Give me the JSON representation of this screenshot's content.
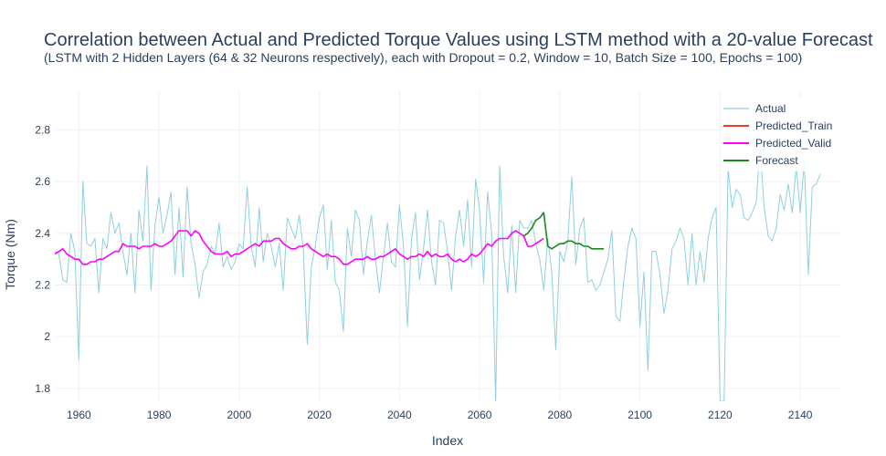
{
  "chart_data": {
    "type": "line",
    "title": "Correlation between Actual and Predicted Torque Values using LSTM method with a 20-value Forecast",
    "subtitle": "(LSTM with 2 Hidden Layers (64 & 32 Neurons respectively), each with Dropout = 0.2, Window = 10, Batch Size = 100, Epochs = 100)",
    "xlabel": "Index",
    "ylabel": "Torque (Nm)",
    "xlim": [
      1954,
      2150
    ],
    "ylim": [
      1.75,
      2.95
    ],
    "x_ticks": [
      1960,
      1980,
      2000,
      2020,
      2040,
      2060,
      2080,
      2100,
      2120,
      2140
    ],
    "x_tick_labels": [
      "1960",
      "1980",
      "2000",
      "2020",
      "2040",
      "2060",
      "2080",
      "2100",
      "2120",
      "2140"
    ],
    "y_ticks": [
      1.8,
      2.0,
      2.2,
      2.4,
      2.6,
      2.8
    ],
    "y_tick_labels": [
      "1.8",
      "2",
      "2.2",
      "2.4",
      "2.6",
      "2.8"
    ],
    "grid": true,
    "legend_position": "top-right",
    "series": [
      {
        "name": "Actual",
        "color": "#8fcfe0",
        "x_start": 1954,
        "values": [
          2.33,
          2.32,
          2.22,
          2.21,
          2.4,
          2.33,
          1.91,
          2.6,
          2.36,
          2.35,
          2.38,
          2.17,
          2.38,
          2.34,
          2.48,
          2.4,
          2.44,
          2.33,
          2.24,
          2.4,
          2.17,
          2.49,
          2.37,
          2.66,
          2.18,
          2.43,
          2.54,
          2.4,
          2.47,
          2.56,
          2.24,
          2.5,
          2.23,
          2.58,
          2.36,
          2.28,
          2.15,
          2.25,
          2.28,
          2.35,
          2.32,
          2.44,
          2.27,
          2.31,
          2.26,
          2.29,
          2.36,
          2.34,
          2.58,
          2.35,
          2.27,
          2.5,
          2.29,
          2.4,
          2.35,
          2.27,
          2.36,
          2.18,
          2.46,
          2.42,
          2.38,
          2.47,
          2.34,
          1.97,
          2.27,
          2.35,
          2.46,
          2.51,
          2.26,
          2.45,
          2.21,
          2.18,
          2.02,
          2.42,
          2.31,
          2.49,
          2.45,
          2.24,
          2.37,
          2.47,
          2.3,
          2.17,
          2.31,
          2.44,
          2.29,
          2.27,
          2.51,
          2.35,
          2.04,
          2.38,
          2.48,
          2.22,
          2.34,
          2.49,
          2.29,
          2.2,
          2.45,
          2.44,
          2.33,
          2.18,
          2.39,
          2.49,
          2.35,
          2.53,
          2.27,
          2.61,
          2.49,
          2.21,
          2.56,
          2.4,
          1.75,
          2.66,
          2.31,
          2.17,
          2.43,
          2.17,
          2.45,
          2.42,
          2.42,
          2.45,
          2.36,
          2.3,
          2.18,
          2.38,
          2.25,
          1.95,
          2.33,
          2.29,
          2.37,
          2.62,
          2.28,
          2.42,
          2.46,
          2.21,
          2.22,
          2.18,
          2.2,
          2.25,
          2.3,
          2.41,
          2.08,
          2.06,
          2.22,
          2.35,
          2.42,
          2.38,
          2.04,
          2.25,
          1.87,
          2.33,
          2.33,
          2.24,
          2.09,
          2.18,
          2.34,
          2.37,
          2.42,
          2.38,
          2.2,
          2.4,
          2.2,
          2.33,
          2.21,
          2.38,
          2.46,
          2.5,
          1.75,
          1.75,
          2.65,
          2.5,
          2.57,
          2.55,
          2.46,
          2.45,
          2.48,
          2.52,
          2.73,
          2.5,
          2.39,
          2.37,
          2.42,
          2.55,
          2.49,
          2.59,
          2.48,
          2.66,
          2.48,
          2.68,
          2.24,
          2.58,
          2.59,
          2.63
        ]
      },
      {
        "name": "Predicted_Train",
        "color": "#ef3b2c",
        "x_start": 1954,
        "values": []
      },
      {
        "name": "Predicted_Valid",
        "color": "#ff00ff",
        "x_start": 1954,
        "values": [
          2.32,
          2.33,
          2.34,
          2.32,
          2.31,
          2.3,
          2.3,
          2.28,
          2.28,
          2.29,
          2.29,
          2.3,
          2.3,
          2.31,
          2.32,
          2.33,
          2.33,
          2.36,
          2.35,
          2.35,
          2.35,
          2.34,
          2.35,
          2.35,
          2.35,
          2.36,
          2.35,
          2.35,
          2.36,
          2.37,
          2.39,
          2.41,
          2.41,
          2.41,
          2.39,
          2.41,
          2.4,
          2.37,
          2.35,
          2.33,
          2.32,
          2.32,
          2.32,
          2.33,
          2.31,
          2.32,
          2.32,
          2.33,
          2.34,
          2.35,
          2.36,
          2.35,
          2.37,
          2.37,
          2.37,
          2.38,
          2.38,
          2.36,
          2.35,
          2.34,
          2.34,
          2.35,
          2.35,
          2.36,
          2.34,
          2.33,
          2.32,
          2.31,
          2.32,
          2.31,
          2.31,
          2.3,
          2.28,
          2.28,
          2.29,
          2.3,
          2.3,
          2.3,
          2.31,
          2.3,
          2.3,
          2.31,
          2.31,
          2.32,
          2.33,
          2.34,
          2.32,
          2.31,
          2.3,
          2.31,
          2.31,
          2.32,
          2.31,
          2.33,
          2.31,
          2.32,
          2.31,
          2.31,
          2.32,
          2.3,
          2.29,
          2.3,
          2.29,
          2.3,
          2.32,
          2.31,
          2.32,
          2.34,
          2.36,
          2.35,
          2.37,
          2.38,
          2.38,
          2.38,
          2.4,
          2.41,
          2.4,
          2.39,
          2.35,
          2.35,
          2.36,
          2.37,
          2.38
        ]
      },
      {
        "name": "Forecast",
        "color": "#1a8a1a",
        "x_start": 2071,
        "values": [
          2.39,
          2.4,
          2.42,
          2.45,
          2.46,
          2.48,
          2.35,
          2.34,
          2.35,
          2.36,
          2.36,
          2.37,
          2.37,
          2.36,
          2.36,
          2.35,
          2.35,
          2.34,
          2.34,
          2.34,
          2.34
        ]
      }
    ]
  }
}
